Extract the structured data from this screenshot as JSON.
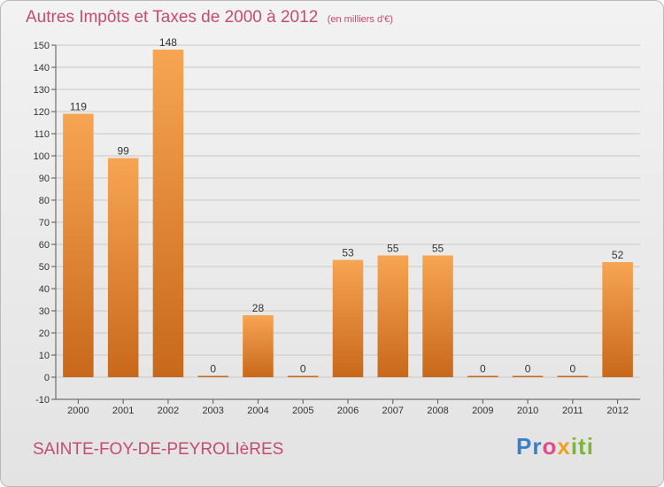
{
  "title": "Autres Impôts et Taxes de 2000 à 2012",
  "unit": "(en milliers d'€)",
  "commune": "SAINTE-FOY-DE-PEYROLIèRES",
  "logo": {
    "p1": "Pr",
    "p2": "o",
    "p3": "x",
    "p4": "iti"
  },
  "colors": {
    "bar_light": "#f7a552",
    "bar_dark": "#c8681a",
    "title": "#c44d6e",
    "grid": "#c8c8c8"
  },
  "chart_data": {
    "type": "bar",
    "categories": [
      "2000",
      "2001",
      "2002",
      "2003",
      "2004",
      "2005",
      "2006",
      "2007",
      "2008",
      "2009",
      "2010",
      "2011",
      "2012"
    ],
    "values": [
      119,
      99,
      148,
      0,
      28,
      0,
      53,
      55,
      55,
      0,
      0,
      0,
      52
    ],
    "data_labels": [
      "119",
      "99",
      "148",
      "0",
      "28",
      "0",
      "53",
      "55",
      "55",
      "0",
      "0",
      "0",
      "52"
    ],
    "ylim": [
      -10,
      150
    ],
    "yticks": [
      -10,
      0,
      10,
      20,
      30,
      40,
      50,
      60,
      70,
      80,
      90,
      100,
      110,
      120,
      130,
      140,
      150
    ],
    "grid": true
  }
}
